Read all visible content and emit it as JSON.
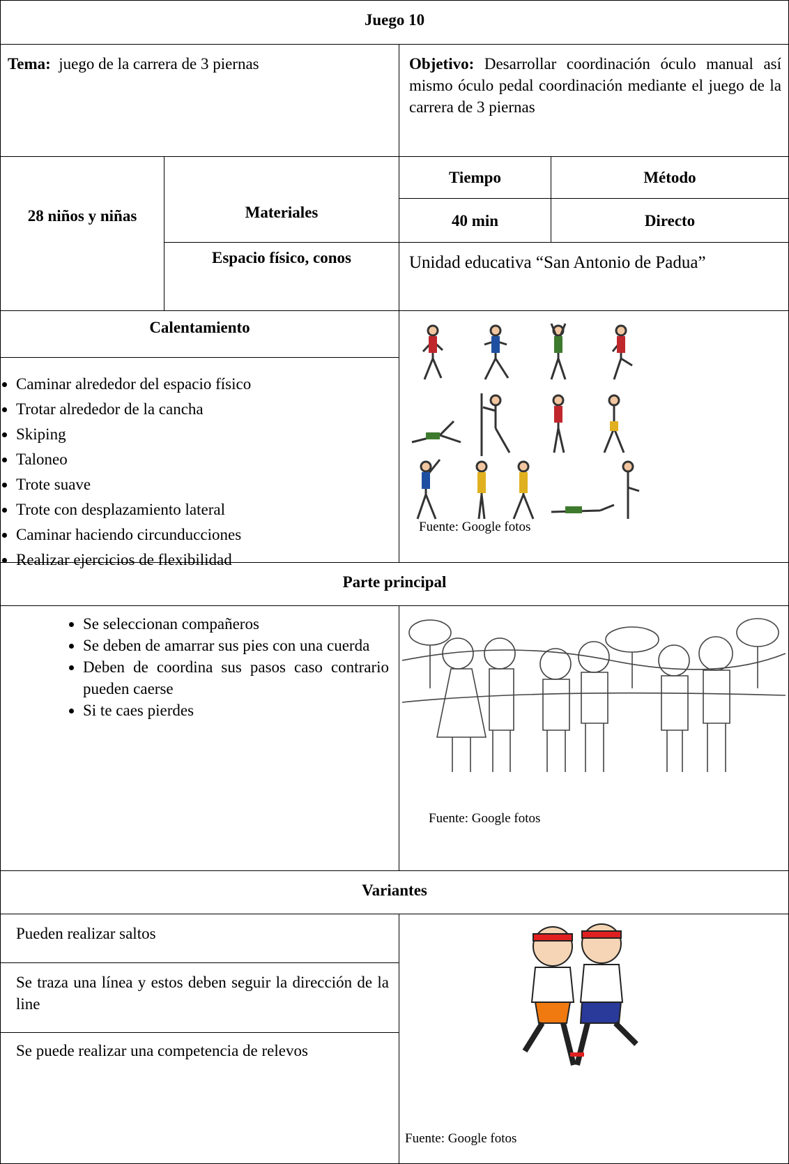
{
  "title": "Juego 10",
  "tema": {
    "label": "Tema:",
    "text": "juego de la carrera de 3 piernas"
  },
  "objetivo": {
    "label": "Objetivo:",
    "text": "Desarrollar coordinación óculo manual así mismo óculo pedal coordinación mediante el juego de la carrera de 3 piernas"
  },
  "participantes": "28 niños y niñas",
  "materiales": {
    "label": "Materiales",
    "text": "Espacio físico, conos"
  },
  "tiempo": {
    "label": "Tiempo",
    "value": "40 min"
  },
  "metodo": {
    "label": "Método",
    "value": "Directo"
  },
  "lugar": "Unidad educativa “San Antonio de Padua”",
  "calentamiento": {
    "title": "Calentamiento",
    "items": [
      "Caminar alrededor del espacio físico",
      "Trotar alrededor de la cancha",
      "Skiping",
      "Taloneo",
      "Trote suave",
      "Trote con desplazamiento lateral",
      "Caminar haciendo circunducciones",
      "Realizar ejercicios de flexibilidad"
    ],
    "source": "Fuente: Google fotos"
  },
  "parte_principal": {
    "title": "Parte principal",
    "items": [
      "Se seleccionan compañeros",
      "Se deben de amarrar sus pies con una cuerda",
      "Deben de coordina sus pasos caso contrario pueden caerse",
      "Si te caes pierdes"
    ],
    "source": "Fuente: Google fotos"
  },
  "variantes": {
    "title": "Variantes",
    "items": [
      "Pueden realizar saltos",
      "Se traza una línea y estos deben seguir la dirección de la line",
      "Se puede realizar una competencia de relevos"
    ],
    "source": "Fuente: Google fotos"
  }
}
